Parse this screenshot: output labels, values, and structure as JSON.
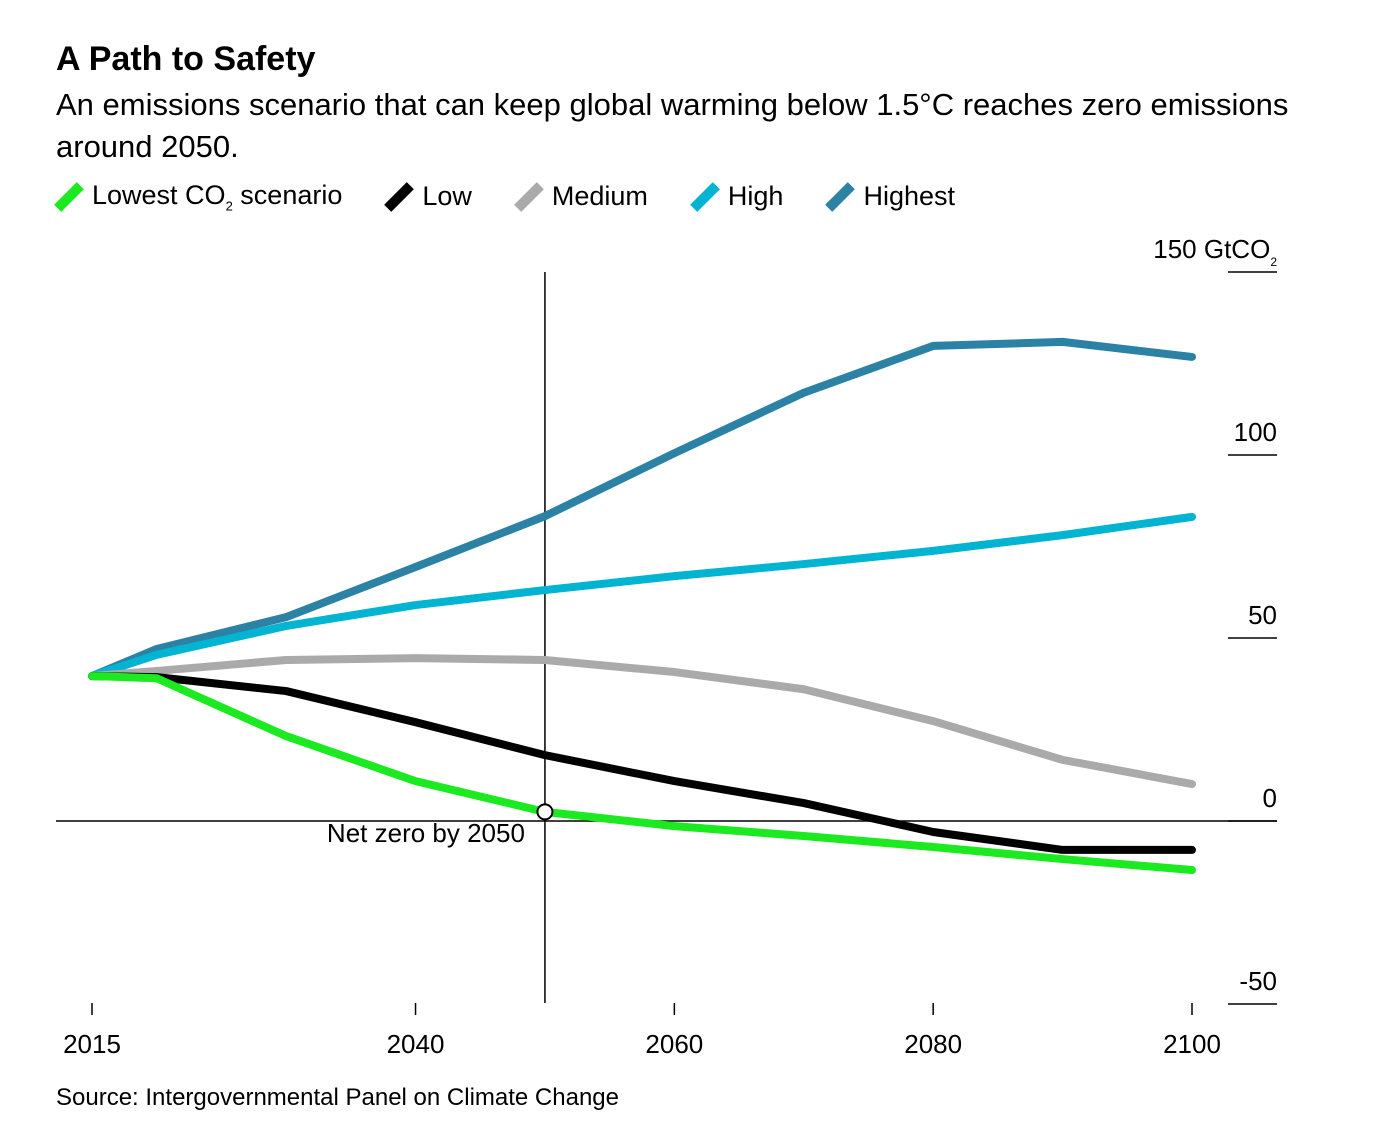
{
  "title": "A Path to Safety",
  "subtitle": "An emissions scenario that can keep global warming below 1.5°C reaches zero emissions around 2050.",
  "source": "Source: Intergovernmental Panel on Climate Change",
  "chart_data": {
    "type": "line",
    "title": "A Path to Safety",
    "ylabel": "GtCO2",
    "y_unit_label": "150 GtCO",
    "y_unit_sub": "2",
    "ylim": [
      -50,
      150
    ],
    "xlim": [
      2015,
      2100
    ],
    "yticks": [
      {
        "v": 150,
        "label": "150 GtCO"
      },
      {
        "v": 100,
        "label": "100"
      },
      {
        "v": 50,
        "label": "50"
      },
      {
        "v": 0,
        "label": "0"
      },
      {
        "v": -50,
        "label": "-50"
      }
    ],
    "xticks": [
      {
        "v": 2015,
        "label": "2015"
      },
      {
        "v": 2040,
        "label": "2040"
      },
      {
        "v": 2060,
        "label": "2060"
      },
      {
        "v": 2080,
        "label": "2080"
      },
      {
        "v": 2100,
        "label": "2100"
      }
    ],
    "x": [
      2015,
      2020,
      2030,
      2040,
      2050,
      2060,
      2070,
      2080,
      2090,
      2100
    ],
    "series": [
      {
        "name": "Lowest CO",
        "name_sub": "2",
        "name_rest": " scenario",
        "color": "#1aea1f",
        "values": [
          39.6,
          39,
          23.2,
          10.9,
          2.5,
          -1.4,
          -4.1,
          -7.1,
          -10.4,
          -13.4
        ]
      },
      {
        "name": "Low",
        "color": "#000000",
        "values": [
          39.6,
          39.3,
          35.5,
          27,
          18,
          10.9,
          4.9,
          -3,
          -7.9,
          -7.9
        ]
      },
      {
        "name": "Medium",
        "color": "#aaaaaa",
        "values": [
          39.6,
          41,
          44,
          44.5,
          44,
          40.7,
          36,
          27.3,
          16.7,
          10.1
        ]
      },
      {
        "name": "High",
        "color": "#00b4d2",
        "values": [
          39.6,
          45.4,
          53.3,
          59,
          63.1,
          66.9,
          70.2,
          73.8,
          78.1,
          83.1
        ]
      },
      {
        "name": "Highest",
        "color": "#2b82a5",
        "values": [
          39.6,
          47,
          55.7,
          69.4,
          83.3,
          100.5,
          117,
          129.8,
          130.9,
          126.8
        ]
      }
    ],
    "annotation": {
      "x": 2050,
      "y": 2.5,
      "label": "Net zero by 2050"
    }
  }
}
